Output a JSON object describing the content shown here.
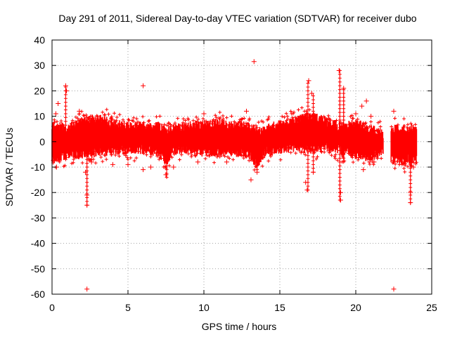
{
  "chart_data": {
    "type": "scatter",
    "title": "Day 291 of 2011, Sidereal Day-to-day VTEC variation (SDTVAR) for receiver dubo",
    "xlabel": "GPS time / hours",
    "ylabel": "SDTVAR / TECUs",
    "xlim": [
      0,
      25
    ],
    "ylim": [
      -60,
      40
    ],
    "xticks": [
      0,
      5,
      10,
      15,
      20,
      25
    ],
    "yticks": [
      -60,
      -50,
      -40,
      -30,
      -20,
      -10,
      0,
      10,
      20,
      30,
      40
    ],
    "grid": true,
    "marker": "+",
    "color": "#ff0000",
    "data_gaps_hours": [
      [
        21.8,
        22.3
      ]
    ],
    "band_envelope": {
      "x": [
        0.0,
        1.0,
        2.0,
        3.0,
        4.0,
        5.0,
        6.0,
        7.0,
        7.5,
        8.0,
        9.0,
        10.0,
        11.0,
        12.0,
        13.0,
        13.5,
        14.0,
        15.0,
        16.0,
        17.0,
        18.0,
        19.0,
        20.0,
        21.0,
        21.8,
        22.3,
        23.0,
        24.0
      ],
      "upper": [
        7,
        5,
        8,
        9,
        7,
        6,
        6,
        6,
        4,
        5,
        6,
        7,
        7,
        6,
        6,
        4,
        5,
        7,
        8,
        10,
        8,
        6,
        7,
        5,
        3,
        5,
        5,
        5
      ],
      "lower": [
        -7,
        -5,
        -5,
        -4,
        -3,
        -3,
        -3,
        -4,
        -8,
        -3,
        -3,
        -4,
        -4,
        -4,
        -5,
        -9,
        -4,
        -3,
        -2,
        -3,
        -2,
        -3,
        -5,
        -6,
        -3,
        -7,
        -7,
        -7
      ]
    },
    "outliers": [
      {
        "x": 0.25,
        "y": 11
      },
      {
        "x": 0.4,
        "y": 15
      },
      {
        "x": 0.9,
        "y": 22
      },
      {
        "x": 0.95,
        "y": 20
      },
      {
        "x": 0.3,
        "y": -10
      },
      {
        "x": 1.8,
        "y": 12
      },
      {
        "x": 2.2,
        "y": -12
      },
      {
        "x": 2.3,
        "y": -21
      },
      {
        "x": 2.3,
        "y": -25
      },
      {
        "x": 2.3,
        "y": -58
      },
      {
        "x": 2.6,
        "y": -8
      },
      {
        "x": 4.0,
        "y": -9
      },
      {
        "x": 5.0,
        "y": -9
      },
      {
        "x": 6.0,
        "y": 22
      },
      {
        "x": 6.0,
        "y": -11
      },
      {
        "x": 6.5,
        "y": -10
      },
      {
        "x": 7.5,
        "y": -13
      },
      {
        "x": 8.0,
        "y": -10
      },
      {
        "x": 9.6,
        "y": -8
      },
      {
        "x": 10.0,
        "y": 11
      },
      {
        "x": 11.5,
        "y": -8
      },
      {
        "x": 12.8,
        "y": 12
      },
      {
        "x": 13.1,
        "y": -15
      },
      {
        "x": 13.3,
        "y": 31.5
      },
      {
        "x": 13.5,
        "y": -12
      },
      {
        "x": 16.7,
        "y": -16
      },
      {
        "x": 16.8,
        "y": -19
      },
      {
        "x": 16.9,
        "y": 24
      },
      {
        "x": 17.1,
        "y": 19
      },
      {
        "x": 17.2,
        "y": -12
      },
      {
        "x": 18.9,
        "y": 28
      },
      {
        "x": 19.0,
        "y": -20
      },
      {
        "x": 19.0,
        "y": -23
      },
      {
        "x": 19.2,
        "y": 21
      },
      {
        "x": 20.0,
        "y": 11
      },
      {
        "x": 20.4,
        "y": 14
      },
      {
        "x": 20.5,
        "y": -11
      },
      {
        "x": 20.7,
        "y": 16
      },
      {
        "x": 21.0,
        "y": 10
      },
      {
        "x": 21.2,
        "y": -8
      },
      {
        "x": 22.5,
        "y": 12
      },
      {
        "x": 22.5,
        "y": -58
      },
      {
        "x": 23.6,
        "y": -20
      },
      {
        "x": 23.6,
        "y": -24
      },
      {
        "x": 23.8,
        "y": -10
      }
    ],
    "spikes": [
      {
        "x": 0.9,
        "from": -7,
        "to": 22
      },
      {
        "x": 2.3,
        "from": -25,
        "to": 10
      },
      {
        "x": 7.55,
        "from": -14,
        "to": 3
      },
      {
        "x": 13.5,
        "from": -11,
        "to": 6
      },
      {
        "x": 16.85,
        "from": -19,
        "to": 24
      },
      {
        "x": 17.2,
        "from": -12,
        "to": 19
      },
      {
        "x": 18.95,
        "from": -23,
        "to": 28
      },
      {
        "x": 19.2,
        "from": -8,
        "to": 21
      },
      {
        "x": 23.6,
        "from": -24,
        "to": 5
      }
    ]
  }
}
